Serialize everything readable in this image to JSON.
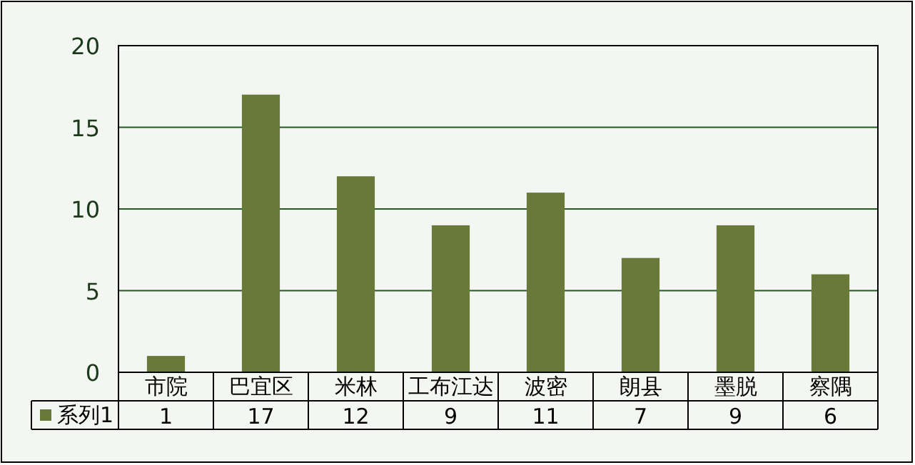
{
  "chart_data": {
    "type": "bar",
    "categories": [
      "市院",
      "巴宜区",
      "米林",
      "工布江达",
      "波密",
      "朗县",
      "墨脱",
      "察隅"
    ],
    "series": [
      {
        "name": "系列1",
        "color": "#68793a",
        "values": [
          1,
          17,
          12,
          9,
          11,
          7,
          9,
          6
        ]
      }
    ],
    "ylim": [
      0,
      20
    ],
    "yticks": [
      0,
      5,
      10,
      15,
      20
    ],
    "grid": "y",
    "legend": "bottom",
    "data_labels": true
  }
}
